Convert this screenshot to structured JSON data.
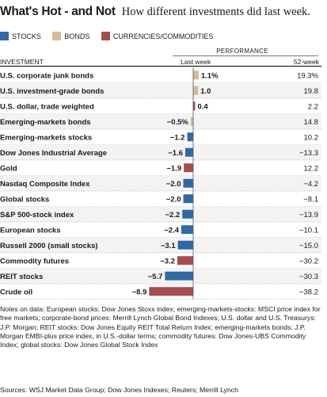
{
  "header": {
    "title": "What's Hot - and Not",
    "subtitle": "How different investments did last week."
  },
  "legend": [
    {
      "label": "STOCKS",
      "color": "#2d6aa6"
    },
    {
      "label": "BONDS",
      "color": "#d2bd94"
    },
    {
      "label": "CURRENCIES/COMMODITIES",
      "color": "#a84b4f"
    }
  ],
  "table_header": {
    "group_label": "PERFORMANCE",
    "investment_label": "INVESTMENT",
    "last_week_label": "Last week",
    "year_label": "52-week"
  },
  "chart_data": {
    "type": "bar",
    "orientation": "horizontal",
    "categories": [
      "U.S. corporate junk bonds",
      "U.S. investment-grade bonds",
      "U.S. dollar, trade weighted",
      "Emerging-markets bonds",
      "Emerging-markets stocks",
      "Dow Jones Industrial Average",
      "Gold",
      "Nasdaq Composite Index",
      "Global stocks",
      "S&P 500-stock index",
      "European stocks",
      "Russell 2000 (small stocks)",
      "Commodity futures",
      "REIT stocks",
      "Crude oil"
    ],
    "values": [
      1.1,
      1.0,
      0.4,
      -0.5,
      -1.2,
      -1.6,
      -1.9,
      -2.0,
      -2.0,
      -2.2,
      -2.4,
      -3.1,
      -3.2,
      -5.7,
      -8.9
    ],
    "value_labels": [
      "1.1%",
      "1.0",
      "0.4",
      "−0.5%",
      "−1.2",
      "−1.6",
      "−1.9",
      "−2.0",
      "−2.0",
      "−2.2",
      "−2.4",
      "−3.1",
      "−3.2",
      "−5.7",
      "−8.9"
    ],
    "asset_class": [
      "bonds",
      "bonds",
      "currencies/commodities",
      "bonds",
      "stocks",
      "stocks",
      "currencies/commodities",
      "stocks",
      "stocks",
      "stocks",
      "stocks",
      "stocks",
      "currencies/commodities",
      "stocks",
      "currencies/commodities"
    ],
    "week_52": [
      "19.3%",
      "19.8",
      "2.2",
      "14.8",
      "10.2",
      "−13.3",
      "12.2",
      "−4.2",
      "−8.1",
      "−13.9",
      "−10.1",
      "−15.0",
      "−30.2",
      "−30.3",
      "−38.2"
    ],
    "xlabel": "",
    "ylabel": "",
    "xlim": [
      -9,
      1.3
    ]
  },
  "notes": "Notes on data: European stocks: Dow Jones Stoxx index; emerging-markets-stocks: MSCI price index for free markets; corporate-bond prices: Merrill Lynch Global Bond Indexes; U.S. dollar and U.S. Treasurys: J.P. Morgan; REIT stocks: Dow Jones Equity REIT Total Return Index; emerging-markets bonds: J.P. Morgan EMBI-plus price index, in U.S.-dollar terms; commodity futures: Dow Jones-UBS Commodity Index; global stocks: Dow Jones Global Stock Index",
  "sources": "Sources: WSJ Market Data Group; Dow Jones Indexes; Reuters; Merrill Lynch"
}
